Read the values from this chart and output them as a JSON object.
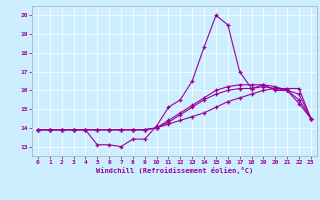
{
  "xlabel": "Windchill (Refroidissement éolien,°C)",
  "bg_color": "#cceeff",
  "line_color": "#990099",
  "xlim": [
    -0.5,
    23.5
  ],
  "ylim": [
    12.5,
    20.5
  ],
  "yticks": [
    13,
    14,
    15,
    16,
    17,
    18,
    19,
    20
  ],
  "xticks": [
    0,
    1,
    2,
    3,
    4,
    5,
    6,
    7,
    8,
    9,
    10,
    11,
    12,
    13,
    14,
    15,
    16,
    17,
    18,
    19,
    20,
    21,
    22,
    23
  ],
  "x": [
    0,
    1,
    2,
    3,
    4,
    5,
    6,
    7,
    8,
    9,
    10,
    11,
    12,
    13,
    14,
    15,
    16,
    17,
    18,
    19,
    20,
    21,
    22,
    23
  ],
  "line1": [
    13.9,
    13.9,
    13.9,
    13.9,
    13.9,
    13.1,
    13.1,
    13.0,
    13.4,
    13.4,
    14.1,
    15.1,
    15.5,
    16.5,
    18.3,
    20.0,
    19.5,
    17.0,
    16.1,
    16.3,
    16.0,
    16.0,
    15.3,
    14.5
  ],
  "line2": [
    13.9,
    13.9,
    13.9,
    13.9,
    13.9,
    13.9,
    13.9,
    13.9,
    13.9,
    13.9,
    14.0,
    14.2,
    14.4,
    14.6,
    14.8,
    15.1,
    15.4,
    15.6,
    15.8,
    16.0,
    16.1,
    16.1,
    16.1,
    14.5
  ],
  "line3": [
    13.9,
    13.9,
    13.9,
    13.9,
    13.9,
    13.9,
    13.9,
    13.9,
    13.9,
    13.9,
    14.0,
    14.3,
    14.7,
    15.1,
    15.5,
    15.8,
    16.0,
    16.1,
    16.1,
    16.2,
    16.1,
    16.0,
    15.8,
    14.5
  ],
  "line4": [
    13.9,
    13.9,
    13.9,
    13.9,
    13.9,
    13.9,
    13.9,
    13.9,
    13.9,
    13.9,
    14.0,
    14.4,
    14.8,
    15.2,
    15.6,
    16.0,
    16.2,
    16.3,
    16.3,
    16.3,
    16.2,
    16.0,
    15.5,
    14.5
  ]
}
